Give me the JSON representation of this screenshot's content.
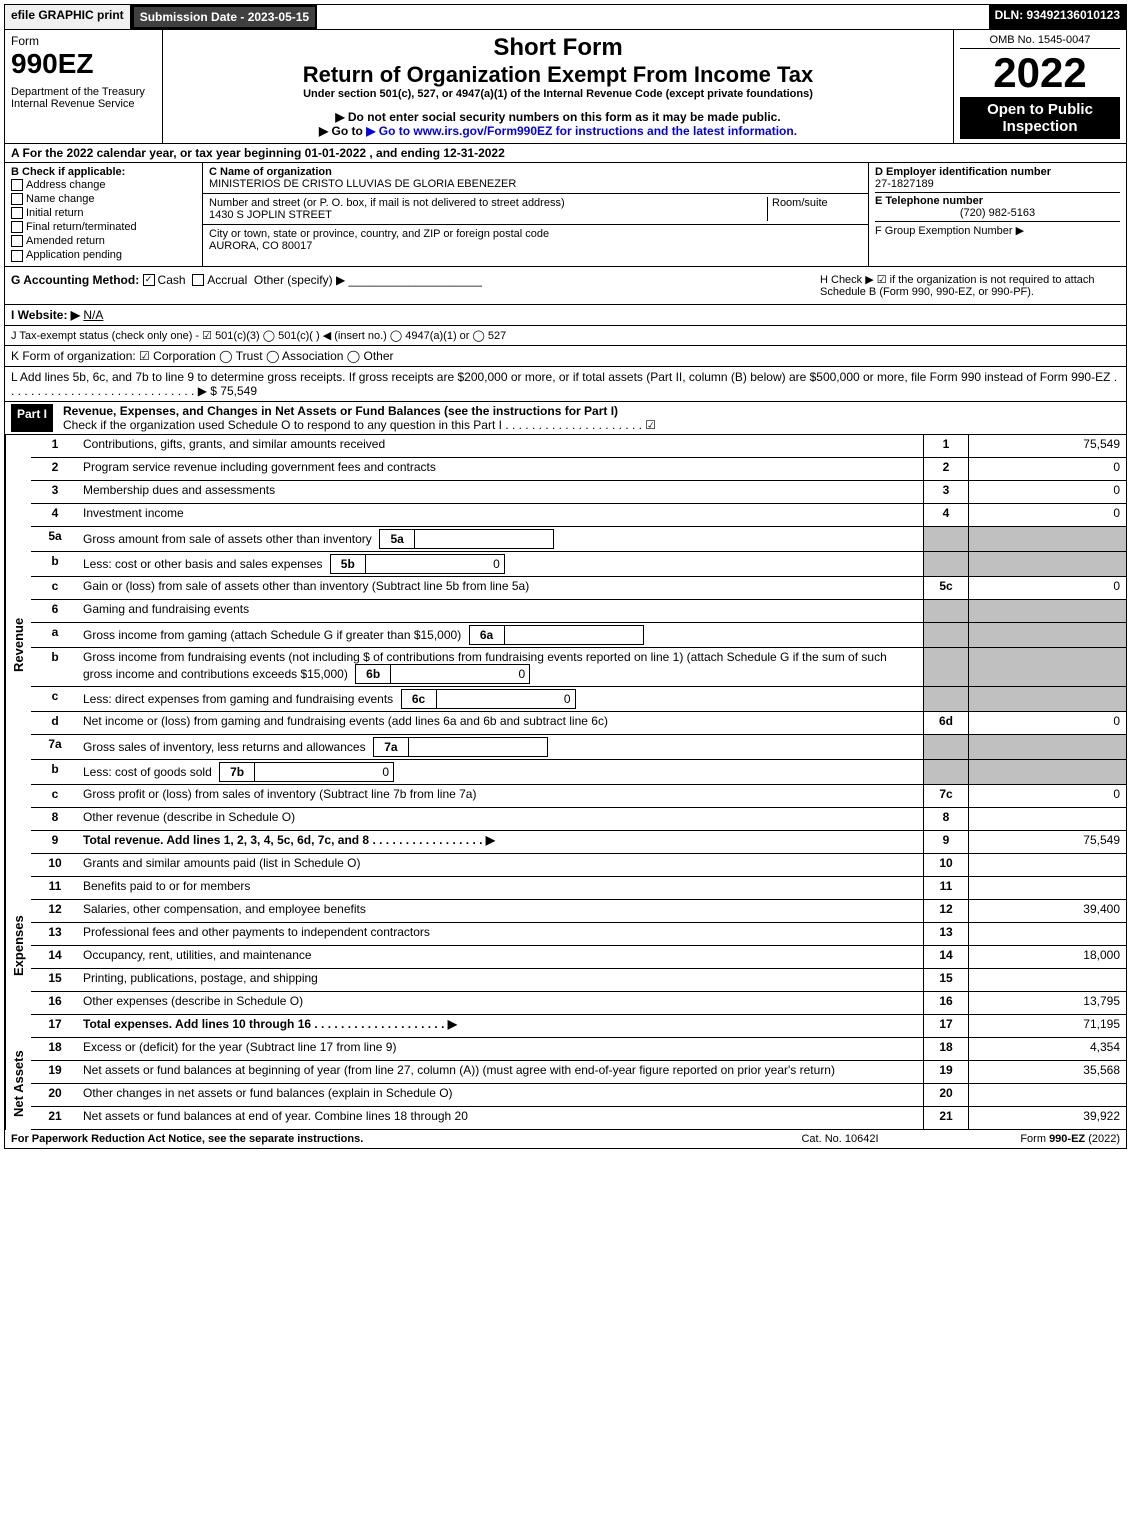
{
  "topbar": {
    "efile": "efile GRAPHIC print",
    "submission": "Submission Date - 2023-05-15",
    "dln": "DLN: 93492136010123"
  },
  "header": {
    "form_word": "Form",
    "form_number": "990EZ",
    "dept": "Department of the Treasury",
    "irs": "Internal Revenue Service",
    "short_form": "Short Form",
    "title": "Return of Organization Exempt From Income Tax",
    "subtitle": "Under section 501(c), 527, or 4947(a)(1) of the Internal Revenue Code (except private foundations)",
    "note1": "▶ Do not enter social security numbers on this form as it may be made public.",
    "note2": "▶ Go to www.irs.gov/Form990EZ for instructions and the latest information.",
    "omb": "OMB No. 1545-0047",
    "year": "2022",
    "open": "Open to Public Inspection"
  },
  "sectionA": "A  For the 2022 calendar year, or tax year beginning 01-01-2022  , and ending 12-31-2022",
  "sectionB": {
    "label": "B  Check if applicable:",
    "items": [
      "Address change",
      "Name change",
      "Initial return",
      "Final return/terminated",
      "Amended return",
      "Application pending"
    ]
  },
  "sectionC": {
    "name_label": "C Name of organization",
    "name": "MINISTERIOS DE CRISTO LLUVIAS DE GLORIA EBENEZER",
    "addr_label": "Number and street (or P. O. box, if mail is not delivered to street address)",
    "room_label": "Room/suite",
    "addr": "1430 S JOPLIN STREET",
    "city_label": "City or town, state or province, country, and ZIP or foreign postal code",
    "city": "AURORA, CO  80017"
  },
  "sectionD": {
    "ein_label": "D Employer identification number",
    "ein": "27-1827189",
    "tel_label": "E Telephone number",
    "tel": "(720) 982-5163",
    "group_label": "F Group Exemption Number  ▶"
  },
  "sectionG": {
    "label": "G Accounting Method:",
    "cash": "Cash",
    "accrual": "Accrual",
    "other": "Other (specify) ▶"
  },
  "sectionH": "H  Check ▶ ☑ if the organization is not required to attach Schedule B (Form 990, 990-EZ, or 990-PF).",
  "sectionI": {
    "label": "I Website: ▶",
    "value": "N/A"
  },
  "sectionJ": "J Tax-exempt status (check only one) - ☑ 501(c)(3)  ◯ 501(c)(  ) ◀ (insert no.)  ◯ 4947(a)(1) or  ◯ 527",
  "sectionK": "K Form of organization:  ☑ Corporation  ◯ Trust  ◯ Association  ◯ Other",
  "sectionL": {
    "text": "L Add lines 5b, 6c, and 7b to line 9 to determine gross receipts. If gross receipts are $200,000 or more, or if total assets (Part II, column (B) below) are $500,000 or more, file Form 990 instead of Form 990-EZ  . . . . . . . . . . . . . . . . . . . . . . . . . . . . .  ▶ $",
    "value": "75,549"
  },
  "part1": {
    "label": "Part I",
    "title": "Revenue, Expenses, and Changes in Net Assets or Fund Balances (see the instructions for Part I)",
    "check": "Check if the organization used Schedule O to respond to any question in this Part I . . . . . . . . . . . . . . . . . . . . .  ☑"
  },
  "sideLabels": {
    "revenue": "Revenue",
    "expenses": "Expenses",
    "netassets": "Net Assets"
  },
  "lines": {
    "1": {
      "n": "1",
      "d": "Contributions, gifts, grants, and similar amounts received",
      "rn": "1",
      "v": "75,549"
    },
    "2": {
      "n": "2",
      "d": "Program service revenue including government fees and contracts",
      "rn": "2",
      "v": "0"
    },
    "3": {
      "n": "3",
      "d": "Membership dues and assessments",
      "rn": "3",
      "v": "0"
    },
    "4": {
      "n": "4",
      "d": "Investment income",
      "rn": "4",
      "v": "0"
    },
    "5a": {
      "n": "5a",
      "d": "Gross amount from sale of assets other than inventory",
      "ib": "5a",
      "iv": ""
    },
    "5b": {
      "n": "b",
      "d": "Less: cost or other basis and sales expenses",
      "ib": "5b",
      "iv": "0"
    },
    "5c": {
      "n": "c",
      "d": "Gain or (loss) from sale of assets other than inventory (Subtract line 5b from line 5a)",
      "rn": "5c",
      "v": "0"
    },
    "6": {
      "n": "6",
      "d": "Gaming and fundraising events"
    },
    "6a": {
      "n": "a",
      "d": "Gross income from gaming (attach Schedule G if greater than $15,000)",
      "ib": "6a",
      "iv": ""
    },
    "6b": {
      "n": "b",
      "d": "Gross income from fundraising events (not including $                 of contributions from fundraising events reported on line 1) (attach Schedule G if the sum of such gross income and contributions exceeds $15,000)",
      "ib": "6b",
      "iv": "0"
    },
    "6c": {
      "n": "c",
      "d": "Less: direct expenses from gaming and fundraising events",
      "ib": "6c",
      "iv": "0"
    },
    "6d": {
      "n": "d",
      "d": "Net income or (loss) from gaming and fundraising events (add lines 6a and 6b and subtract line 6c)",
      "rn": "6d",
      "v": "0"
    },
    "7a": {
      "n": "7a",
      "d": "Gross sales of inventory, less returns and allowances",
      "ib": "7a",
      "iv": ""
    },
    "7b": {
      "n": "b",
      "d": "Less: cost of goods sold",
      "ib": "7b",
      "iv": "0"
    },
    "7c": {
      "n": "c",
      "d": "Gross profit or (loss) from sales of inventory (Subtract line 7b from line 7a)",
      "rn": "7c",
      "v": "0"
    },
    "8": {
      "n": "8",
      "d": "Other revenue (describe in Schedule O)",
      "rn": "8",
      "v": ""
    },
    "9": {
      "n": "9",
      "d": "Total revenue. Add lines 1, 2, 3, 4, 5c, 6d, 7c, and 8   . . . . . . . . . . . . . . . . .  ▶",
      "rn": "9",
      "v": "75,549",
      "bold": true
    },
    "10": {
      "n": "10",
      "d": "Grants and similar amounts paid (list in Schedule O)",
      "rn": "10",
      "v": ""
    },
    "11": {
      "n": "11",
      "d": "Benefits paid to or for members",
      "rn": "11",
      "v": ""
    },
    "12": {
      "n": "12",
      "d": "Salaries, other compensation, and employee benefits",
      "rn": "12",
      "v": "39,400"
    },
    "13": {
      "n": "13",
      "d": "Professional fees and other payments to independent contractors",
      "rn": "13",
      "v": ""
    },
    "14": {
      "n": "14",
      "d": "Occupancy, rent, utilities, and maintenance",
      "rn": "14",
      "v": "18,000"
    },
    "15": {
      "n": "15",
      "d": "Printing, publications, postage, and shipping",
      "rn": "15",
      "v": ""
    },
    "16": {
      "n": "16",
      "d": "Other expenses (describe in Schedule O)",
      "rn": "16",
      "v": "13,795"
    },
    "17": {
      "n": "17",
      "d": "Total expenses. Add lines 10 through 16   . . . . . . . . . . . . . . . . . . . .  ▶",
      "rn": "17",
      "v": "71,195",
      "bold": true
    },
    "18": {
      "n": "18",
      "d": "Excess or (deficit) for the year (Subtract line 17 from line 9)",
      "rn": "18",
      "v": "4,354"
    },
    "19": {
      "n": "19",
      "d": "Net assets or fund balances at beginning of year (from line 27, column (A)) (must agree with end-of-year figure reported on prior year's return)",
      "rn": "19",
      "v": "35,568"
    },
    "20": {
      "n": "20",
      "d": "Other changes in net assets or fund balances (explain in Schedule O)",
      "rn": "20",
      "v": ""
    },
    "21": {
      "n": "21",
      "d": "Net assets or fund balances at end of year. Combine lines 18 through 20",
      "rn": "21",
      "v": "39,922"
    }
  },
  "footer": {
    "left": "For Paperwork Reduction Act Notice, see the separate instructions.",
    "center": "Cat. No. 10642I",
    "right": "Form 990-EZ (2022)"
  }
}
